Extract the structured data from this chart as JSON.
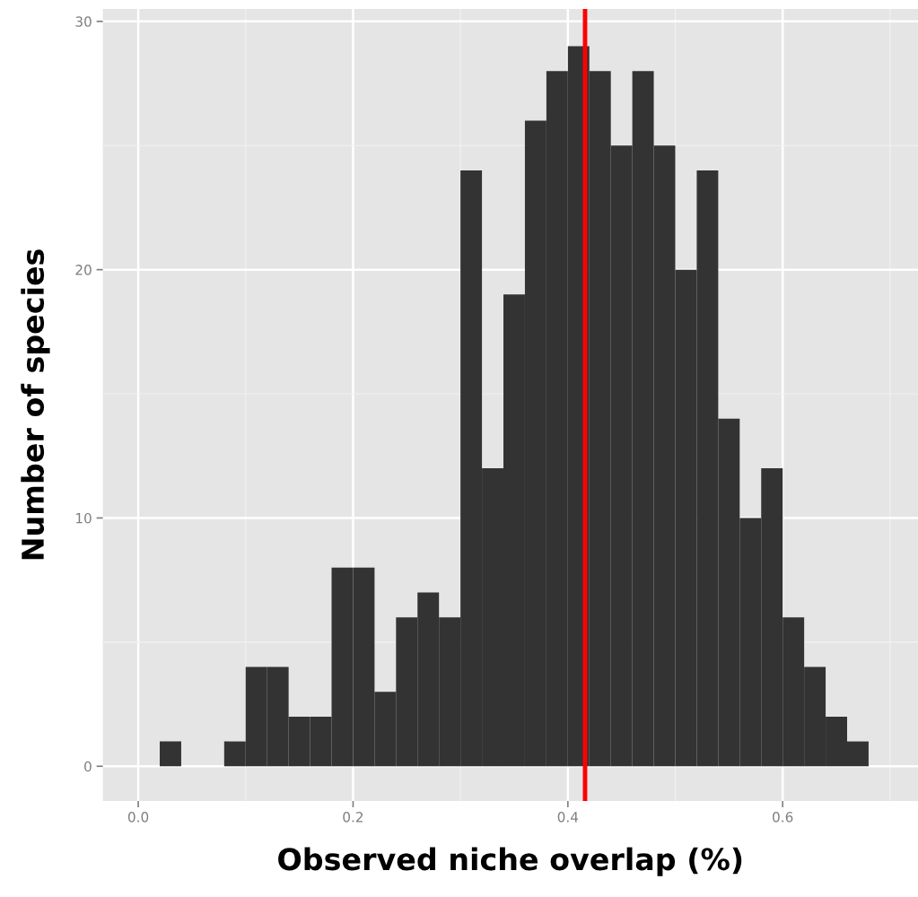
{
  "chart_data": {
    "type": "histogram",
    "xlabel": "Observed niche overlap (%)",
    "ylabel": "Number of species",
    "bins": [
      0.02,
      0.04,
      0.06,
      0.08,
      0.1,
      0.12,
      0.14,
      0.16,
      0.18,
      0.2,
      0.22,
      0.24,
      0.26,
      0.28,
      0.3,
      0.32,
      0.34,
      0.36,
      0.38,
      0.4,
      0.42,
      0.44,
      0.46,
      0.48,
      0.5,
      0.52,
      0.54,
      0.56,
      0.58,
      0.6,
      0.62,
      0.64,
      0.66,
      0.68
    ],
    "values": [
      1,
      0,
      0,
      1,
      4,
      4,
      2,
      2,
      8,
      8,
      3,
      6,
      7,
      6,
      24,
      12,
      19,
      26,
      28,
      29,
      28,
      25,
      28,
      25,
      20,
      24,
      14,
      10,
      12,
      6,
      4,
      2,
      1
    ],
    "color": "#333333",
    "xlim": [
      -0.033,
      0.726
    ],
    "ylim": [
      -1.4,
      30.5
    ],
    "xticks": [
      {
        "value": 0.0,
        "label": "0.0"
      },
      {
        "value": 0.1,
        "label": null
      },
      {
        "value": 0.2,
        "label": "0.2"
      },
      {
        "value": 0.3,
        "label": null
      },
      {
        "value": 0.4,
        "label": "0.4"
      },
      {
        "value": 0.5,
        "label": null
      },
      {
        "value": 0.6,
        "label": "0.6"
      },
      {
        "value": 0.7,
        "label": null
      }
    ],
    "yticks": [
      0,
      {
        "value": 5,
        "label": null
      },
      10,
      {
        "value": 15,
        "label": null
      },
      20,
      {
        "value": 25,
        "label": null
      },
      30
    ],
    "grid": true,
    "ref_lines": [
      {
        "axis": "x",
        "value": 0.416,
        "color": "#ff0000"
      }
    ]
  }
}
